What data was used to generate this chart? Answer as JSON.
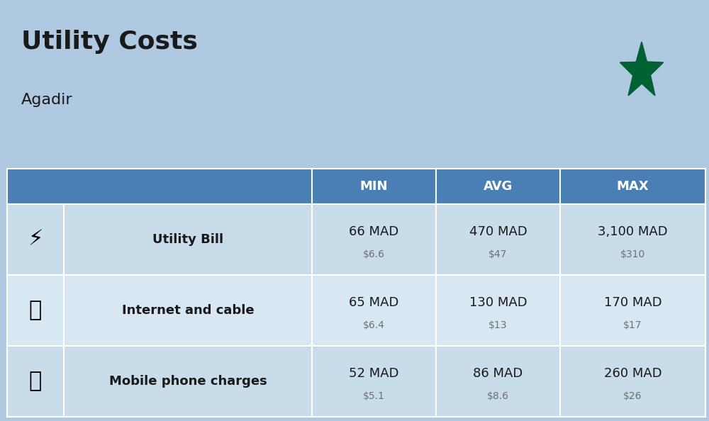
{
  "title": "Utility Costs",
  "subtitle": "Agadir",
  "background_color": "#aec9e0",
  "header_bg_color": "#4a7fb5",
  "header_text_color": "#ffffff",
  "row_bg_colors": [
    "#c8dcea",
    "#d8e8f2"
  ],
  "col_header_labels": [
    "MIN",
    "AVG",
    "MAX"
  ],
  "rows": [
    {
      "label": "Utility Bill",
      "icon": "utility",
      "min_mad": "66 MAD",
      "min_usd": "$6.6",
      "avg_mad": "470 MAD",
      "avg_usd": "$47",
      "max_mad": "3,100 MAD",
      "max_usd": "$310"
    },
    {
      "label": "Internet and cable",
      "icon": "internet",
      "min_mad": "65 MAD",
      "min_usd": "$6.4",
      "avg_mad": "130 MAD",
      "avg_usd": "$13",
      "max_mad": "170 MAD",
      "max_usd": "$17"
    },
    {
      "label": "Mobile phone charges",
      "icon": "mobile",
      "min_mad": "52 MAD",
      "min_usd": "$5.1",
      "avg_mad": "86 MAD",
      "avg_usd": "$8.6",
      "max_mad": "260 MAD",
      "max_usd": "$26"
    }
  ],
  "flag_bg": "#e8000d",
  "flag_star_color": "#006233",
  "label_fontsize": 13,
  "value_fontsize": 13,
  "sub_value_fontsize": 10,
  "header_fontsize": 13
}
